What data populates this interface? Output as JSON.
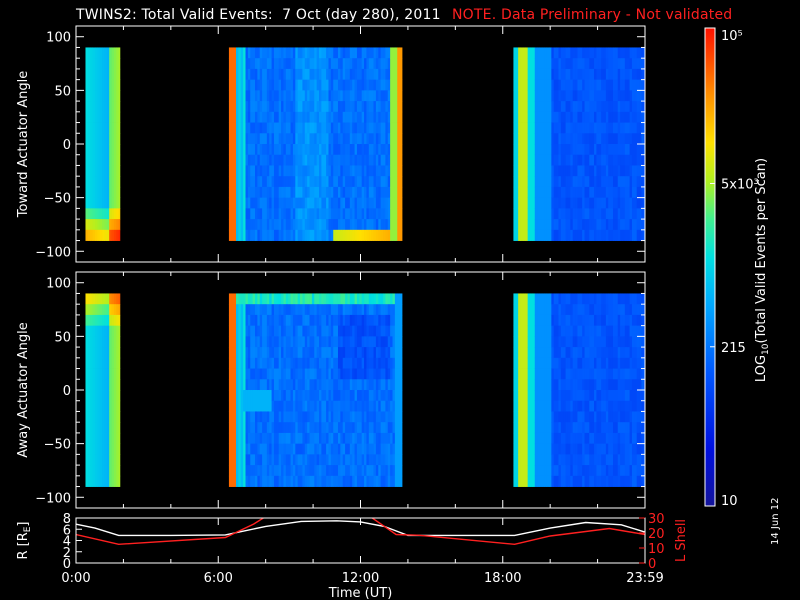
{
  "header": {
    "title": "TWINS2: Total Valid Events:  7 Oct (day 280), 2011",
    "note": "NOTE. Data Preliminary - Not validated"
  },
  "side_date": "14 Jun 12",
  "colors": {
    "note": "#ff2020",
    "r_line": "#ffffff",
    "l_shell_line": "#ff2020",
    "background": "#000000"
  },
  "chart_data": [
    {
      "type": "heatmap",
      "ylabel": "Toward Actuator Angle",
      "xlim": [
        0,
        24
      ],
      "ylim": [
        -110,
        110
      ],
      "yticks": [
        100,
        50,
        0,
        -50,
        -100
      ],
      "data_coverage_hours": [
        [
          0.4,
          1.85
        ],
        [
          6.45,
          13.75
        ],
        [
          18.45,
          24.0
        ]
      ],
      "angle_range": [
        -90,
        90
      ],
      "saturated_edge_hours": [
        6.5,
        13.7
      ]
    },
    {
      "type": "heatmap",
      "ylabel": "Away Actuator Angle",
      "xlim": [
        0,
        24
      ],
      "ylim": [
        -110,
        110
      ],
      "yticks": [
        100,
        50,
        0,
        -50,
        -100
      ],
      "data_coverage_hours": [
        [
          0.4,
          1.85
        ],
        [
          6.45,
          13.75
        ],
        [
          18.45,
          24.0
        ]
      ],
      "angle_range": [
        -90,
        90
      ],
      "saturated_edge_hours": [
        6.5,
        6.75
      ]
    },
    {
      "type": "line",
      "ylabel": "R [RE]",
      "y2label": "L Shell",
      "xlabel": "Time (UT)",
      "xlim": [
        0,
        24
      ],
      "ylim": [
        0,
        8
      ],
      "y2lim": [
        0,
        30
      ],
      "xticks": [
        "0:00",
        "6:00",
        "12:00",
        "18:00",
        "23:59"
      ],
      "yticks": [
        0,
        2,
        4,
        6,
        8
      ],
      "y2ticks": [
        0,
        10,
        20,
        30
      ],
      "series": [
        {
          "name": "R",
          "color": "#ffffff",
          "x": [
            0,
            0.8,
            1.8,
            4,
            6.3,
            8,
            9.5,
            11,
            12,
            13,
            14,
            16,
            18.5,
            20,
            21.5,
            23,
            24
          ],
          "y": [
            6.9,
            6.2,
            4.9,
            4.9,
            5.0,
            6.5,
            7.4,
            7.5,
            7.3,
            6.5,
            4.9,
            4.9,
            4.9,
            6.2,
            7.2,
            6.8,
            5.5
          ]
        },
        {
          "name": "L Shell",
          "color": "#ff2020",
          "x": [
            0,
            1.8,
            6.3,
            7.5,
            8.0,
            12.4,
            13.5,
            14.5,
            18.5,
            20,
            22.5,
            24
          ],
          "y": [
            19,
            12.5,
            17,
            26,
            31,
            31,
            19,
            18.5,
            12.5,
            18,
            23,
            19
          ]
        }
      ]
    },
    {
      "type": "colorbar",
      "label": "LOG10(Total Valid Events per Scan)",
      "scale": "log",
      "range": [
        10,
        100000
      ],
      "tick_values": [
        10,
        215,
        5000,
        100000
      ],
      "tick_labels": [
        "10",
        "215",
        "5x10³",
        "10⁵"
      ]
    }
  ]
}
